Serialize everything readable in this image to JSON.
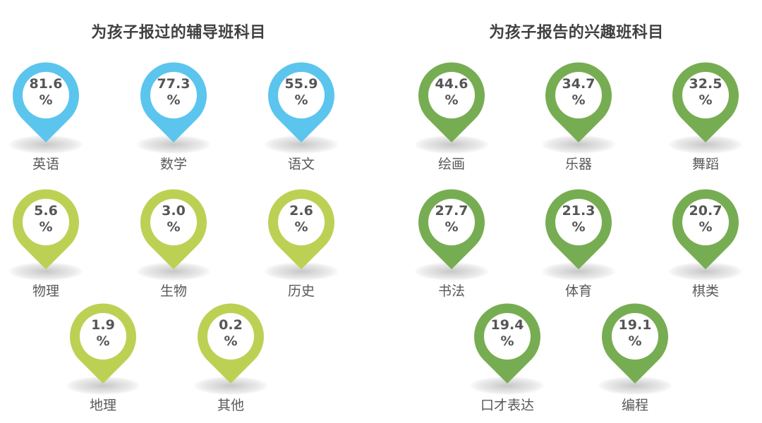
{
  "left": {
    "title": "为孩子报过的辅导班科目",
    "items": [
      {
        "label": "英语",
        "value": "81.6",
        "unit": "%",
        "color": "#5BC5EE"
      },
      {
        "label": "数学",
        "value": "77.3",
        "unit": "%",
        "color": "#5BC5EE"
      },
      {
        "label": "语文",
        "value": "55.9",
        "unit": "%",
        "color": "#5BC5EE"
      },
      {
        "label": "物理",
        "value": "5.6",
        "unit": "%",
        "color": "#BCD154"
      },
      {
        "label": "生物",
        "value": "3.0",
        "unit": "%",
        "color": "#BCD154"
      },
      {
        "label": "历史",
        "value": "2.6",
        "unit": "%",
        "color": "#BCD154"
      },
      {
        "label": "地理",
        "value": "1.9",
        "unit": "%",
        "color": "#BCD154"
      },
      {
        "label": "其他",
        "value": "0.2",
        "unit": "%",
        "color": "#BCD154"
      }
    ]
  },
  "right": {
    "title": "为孩子报告的兴趣班科目",
    "items": [
      {
        "label": "绘画",
        "value": "44.6",
        "unit": "%",
        "color": "#77AD52"
      },
      {
        "label": "乐器",
        "value": "34.7",
        "unit": "%",
        "color": "#77AD52"
      },
      {
        "label": "舞蹈",
        "value": "32.5",
        "unit": "%",
        "color": "#77AD52"
      },
      {
        "label": "书法",
        "value": "27.7",
        "unit": "%",
        "color": "#77AD52"
      },
      {
        "label": "体育",
        "value": "21.3",
        "unit": "%",
        "color": "#77AD52"
      },
      {
        "label": "棋类",
        "value": "20.7",
        "unit": "%",
        "color": "#77AD52"
      },
      {
        "label": "口才表达",
        "value": "19.4",
        "unit": "%",
        "color": "#77AD52"
      },
      {
        "label": "编程",
        "value": "19.1",
        "unit": "%",
        "color": "#77AD52"
      }
    ]
  },
  "chart_data": [
    {
      "type": "table",
      "title": "为孩子报过的辅导班科目",
      "categories": [
        "英语",
        "数学",
        "语文",
        "物理",
        "生物",
        "历史",
        "地理",
        "其他"
      ],
      "values": [
        81.6,
        77.3,
        55.9,
        5.6,
        3.0,
        2.6,
        1.9,
        0.2
      ],
      "unit": "%"
    },
    {
      "type": "table",
      "title": "为孩子报告的兴趣班科目",
      "categories": [
        "绘画",
        "乐器",
        "舞蹈",
        "书法",
        "体育",
        "棋类",
        "口才表达",
        "编程"
      ],
      "values": [
        44.6,
        34.7,
        32.5,
        27.7,
        21.3,
        20.7,
        19.4,
        19.1
      ],
      "unit": "%"
    }
  ]
}
